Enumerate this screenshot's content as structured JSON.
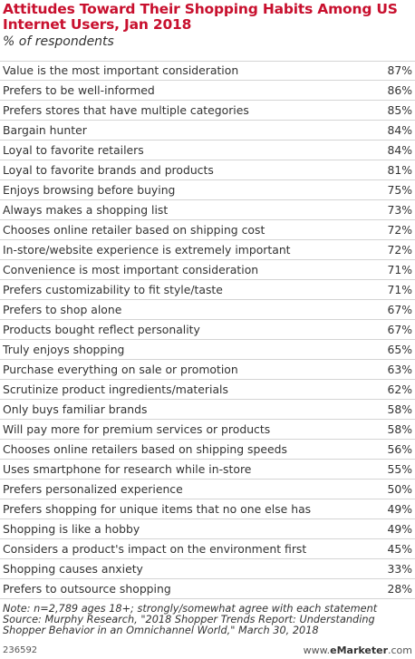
{
  "header": {
    "title": "Attitudes Toward Their Shopping Habits Among US Internet Users, Jan 2018",
    "subtitle": "% of respondents"
  },
  "chart_data": {
    "type": "table",
    "title": "Attitudes Toward Their Shopping Habits Among US Internet Users, Jan 2018",
    "subtitle": "% of respondents",
    "rows": [
      {
        "label": "Value is the most important consideration",
        "value": "87%"
      },
      {
        "label": "Prefers to be well-informed",
        "value": "86%"
      },
      {
        "label": "Prefers stores that have multiple categories",
        "value": "85%"
      },
      {
        "label": "Bargain hunter",
        "value": "84%"
      },
      {
        "label": "Loyal to favorite retailers",
        "value": "84%"
      },
      {
        "label": "Loyal to favorite brands and products",
        "value": "81%"
      },
      {
        "label": "Enjoys browsing before buying",
        "value": "75%"
      },
      {
        "label": "Always makes a shopping list",
        "value": "73%"
      },
      {
        "label": "Chooses online retailer based on shipping cost",
        "value": "72%"
      },
      {
        "label": "In-store/website experience is extremely important",
        "value": "72%"
      },
      {
        "label": "Convenience is most important consideration",
        "value": "71%"
      },
      {
        "label": "Prefers customizability to fit style/taste",
        "value": "71%"
      },
      {
        "label": "Prefers to shop alone",
        "value": "67%"
      },
      {
        "label": "Products bought reflect personality",
        "value": "67%"
      },
      {
        "label": "Truly enjoys shopping",
        "value": "65%"
      },
      {
        "label": "Purchase everything on sale or promotion",
        "value": "63%"
      },
      {
        "label": "Scrutinize product ingredients/materials",
        "value": "62%"
      },
      {
        "label": "Only buys familiar brands",
        "value": "58%"
      },
      {
        "label": "Will pay more for premium services or products",
        "value": "58%"
      },
      {
        "label": "Chooses online retailers based on shipping speeds",
        "value": "56%"
      },
      {
        "label": "Uses smartphone for research while in-store",
        "value": "55%"
      },
      {
        "label": "Prefers personalized experience",
        "value": "50%"
      },
      {
        "label": "Prefers shopping for unique items that no one else has",
        "value": "49%"
      },
      {
        "label": "Shopping is like a hobby",
        "value": "49%"
      },
      {
        "label": "Considers a product's impact on the environment first",
        "value": "45%"
      },
      {
        "label": "Shopping causes anxiety",
        "value": "33%"
      },
      {
        "label": "Prefers to outsource shopping",
        "value": "28%"
      }
    ]
  },
  "footer": {
    "note_lines": [
      "Note: n=2,789 ages 18+; strongly/somewhat agree with each statement",
      "Source: Murphy Research, \"2018 Shopper Trends Report: Understanding",
      "Shopper Behavior in an Omnichannel World,\" March 30, 2018"
    ],
    "chart_id": "236592",
    "brand_prefix": "www.",
    "brand_name": "eMarketer",
    "brand_suffix": ".com"
  }
}
